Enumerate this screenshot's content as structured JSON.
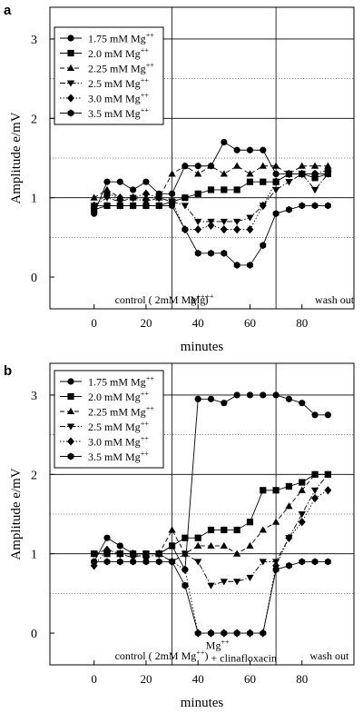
{
  "chart_data": [
    {
      "panel_label": "a",
      "type": "line",
      "xlabel": "minutes",
      "ylabel": "Amplitude e/mV",
      "xlim": [
        -17,
        100
      ],
      "ylim": [
        -0.4,
        3.4
      ],
      "xticks": [
        0,
        20,
        40,
        60,
        80,
        100
      ],
      "xtick_labels": [
        "0",
        "20",
        "40",
        "60",
        "80"
      ],
      "yticks": [
        0,
        1,
        2,
        3
      ],
      "ytick_labels": [
        "0",
        "1",
        "2",
        "3"
      ],
      "grid": {
        "solid_y": [
          1,
          2,
          3
        ],
        "dotted_y": [
          0.5,
          1.5,
          2.5
        ],
        "solid_x": [
          30,
          70
        ]
      },
      "legend_position": "top-left",
      "phase_labels": [
        {
          "text": "control ( 2mM Mg",
          "sup": "++",
          "close": ")",
          "x": 8,
          "y": -0.33,
          "lines": []
        },
        {
          "text": "Mg",
          "sup": "++",
          "close": "",
          "x": 37,
          "y": -0.33,
          "lines": []
        },
        {
          "text": "wash out",
          "sup": "",
          "close": "",
          "x": 85,
          "y": -0.33,
          "lines": []
        }
      ],
      "series": [
        {
          "name": "1.75 mM Mg",
          "sup": "++",
          "marker": "circle",
          "dash": "solid",
          "x": [
            0,
            5,
            10,
            15,
            20,
            25,
            30,
            35,
            40,
            45,
            50,
            55,
            60,
            65,
            70,
            75,
            80,
            85,
            90
          ],
          "y": [
            0.8,
            1.2,
            1.2,
            1.1,
            1.2,
            1.05,
            1.05,
            1.4,
            1.4,
            1.4,
            1.7,
            1.6,
            1.6,
            1.6,
            1.3,
            1.3,
            1.3,
            1.3,
            1.3
          ]
        },
        {
          "name": "2.0 mM Mg",
          "sup": "++",
          "marker": "square",
          "dash": "solid",
          "x": [
            0,
            5,
            10,
            15,
            20,
            25,
            30,
            35,
            40,
            45,
            50,
            55,
            60,
            65,
            70,
            75,
            80,
            85,
            90
          ],
          "y": [
            0.85,
            0.9,
            0.9,
            0.9,
            0.9,
            0.9,
            0.95,
            1.0,
            1.05,
            1.1,
            1.1,
            1.1,
            1.2,
            1.2,
            1.2,
            1.3,
            1.3,
            1.25,
            1.3
          ]
        },
        {
          "name": "2.25 mM Mg",
          "sup": "++",
          "marker": "triangle-up",
          "dash": "dash",
          "x": [
            0,
            5,
            10,
            15,
            20,
            25,
            30,
            35,
            40,
            45,
            50,
            55,
            60,
            65,
            70,
            75,
            80,
            85,
            90
          ],
          "y": [
            1.0,
            1.1,
            1.0,
            1.0,
            1.0,
            1.0,
            1.3,
            1.4,
            1.3,
            1.4,
            1.3,
            1.4,
            1.3,
            1.4,
            1.4,
            1.3,
            1.4,
            1.4,
            1.4
          ]
        },
        {
          "name": "2.5 mM Mg",
          "sup": "++",
          "marker": "triangle-down",
          "dash": "dashdot",
          "x": [
            0,
            5,
            10,
            15,
            20,
            25,
            30,
            35,
            40,
            45,
            50,
            55,
            60,
            65,
            70,
            75,
            80,
            85,
            90
          ],
          "y": [
            0.9,
            1.0,
            0.95,
            1.0,
            0.95,
            1.0,
            0.95,
            0.9,
            0.7,
            0.7,
            0.7,
            0.7,
            0.75,
            0.9,
            1.1,
            1.2,
            1.3,
            1.1,
            1.3
          ]
        },
        {
          "name": "3.0 mM Mg",
          "sup": "++",
          "marker": "diamond",
          "dash": "dot",
          "x": [
            0,
            5,
            10,
            15,
            20,
            25,
            30,
            35,
            40,
            45,
            50,
            55,
            60,
            65,
            70,
            75,
            80,
            85,
            90
          ],
          "y": [
            0.9,
            1.05,
            1.0,
            1.0,
            1.05,
            1.0,
            0.95,
            0.6,
            0.6,
            0.65,
            0.6,
            0.6,
            0.6,
            0.9,
            1.2,
            1.3,
            1.3,
            1.3,
            1.35
          ]
        },
        {
          "name": "3.5 mM Mg",
          "sup": "++",
          "marker": "hexagon",
          "dash": "solid",
          "x": [
            0,
            5,
            10,
            15,
            20,
            25,
            30,
            35,
            40,
            45,
            50,
            55,
            60,
            65,
            70,
            75,
            80,
            85,
            90
          ],
          "y": [
            0.9,
            0.9,
            0.9,
            0.9,
            0.9,
            0.9,
            0.9,
            0.6,
            0.3,
            0.3,
            0.3,
            0.15,
            0.15,
            0.4,
            0.8,
            0.85,
            0.9,
            0.9,
            0.9
          ]
        }
      ]
    },
    {
      "panel_label": "b",
      "type": "line",
      "xlabel": "minutes",
      "ylabel": "Amplitude e/mV",
      "xlim": [
        -17,
        100
      ],
      "ylim": [
        -0.4,
        3.4
      ],
      "xticks": [
        0,
        20,
        40,
        60,
        80,
        100
      ],
      "xtick_labels": [
        "0",
        "20",
        "40",
        "60",
        "80"
      ],
      "yticks": [
        0,
        1,
        2,
        3
      ],
      "ytick_labels": [
        "0",
        "1",
        "2",
        "3"
      ],
      "grid": {
        "solid_y": [
          1,
          2,
          3
        ],
        "dotted_y": [
          0.5,
          1.5,
          2.5
        ],
        "solid_x": [
          30,
          70
        ]
      },
      "legend_position": "top-left",
      "phase_labels": [
        {
          "text": "control ( 2mM Mg",
          "sup": "++",
          "close": ")",
          "x": 8,
          "y": -0.33,
          "lines": []
        },
        {
          "text": "Mg",
          "sup": "++",
          "close": "",
          "x": 43,
          "y": -0.2,
          "lines": []
        },
        {
          "text": "+ clinafloxacin",
          "sup": "",
          "close": "",
          "x": 45,
          "y": -0.36,
          "lines": []
        },
        {
          "text": "wash out",
          "sup": "",
          "close": "",
          "x": 83,
          "y": -0.33,
          "lines": []
        }
      ],
      "series": [
        {
          "name": "1.75 mM Mg",
          "sup": "++",
          "marker": "circle",
          "dash": "solid",
          "x": [
            0,
            5,
            10,
            15,
            20,
            25,
            30,
            35,
            40,
            45,
            50,
            55,
            60,
            65,
            70,
            75,
            80,
            85,
            90
          ],
          "y": [
            0.9,
            1.2,
            1.1,
            1.0,
            1.0,
            1.0,
            1.1,
            0.8,
            2.95,
            2.95,
            2.9,
            3.0,
            3.0,
            3.0,
            3.0,
            2.95,
            2.9,
            2.75,
            2.75
          ]
        },
        {
          "name": "2.0 mM Mg",
          "sup": "++",
          "marker": "square",
          "dash": "solid",
          "x": [
            0,
            5,
            10,
            15,
            20,
            25,
            30,
            35,
            40,
            45,
            50,
            55,
            60,
            65,
            70,
            75,
            80,
            85,
            90
          ],
          "y": [
            1.0,
            1.0,
            1.0,
            1.0,
            1.0,
            1.0,
            1.1,
            1.2,
            1.2,
            1.3,
            1.3,
            1.3,
            1.4,
            1.8,
            1.8,
            1.85,
            1.9,
            2.0,
            2.0
          ]
        },
        {
          "name": "2.25 mM Mg",
          "sup": "++",
          "marker": "triangle-up",
          "dash": "dash",
          "x": [
            0,
            5,
            10,
            15,
            20,
            25,
            30,
            35,
            40,
            45,
            50,
            55,
            60,
            65,
            70,
            75,
            80,
            85,
            90
          ],
          "y": [
            1.0,
            1.05,
            1.0,
            1.0,
            1.0,
            1.0,
            1.3,
            1.0,
            1.1,
            1.1,
            1.1,
            1.0,
            1.1,
            1.3,
            1.4,
            1.6,
            1.8,
            2.0,
            2.0
          ]
        },
        {
          "name": "2.5 mM Mg",
          "sup": "++",
          "marker": "triangle-down",
          "dash": "dashdot",
          "x": [
            0,
            5,
            10,
            15,
            20,
            25,
            30,
            35,
            40,
            45,
            50,
            55,
            60,
            65,
            70,
            75,
            80,
            85,
            90
          ],
          "y": [
            1.0,
            1.0,
            1.0,
            0.95,
            1.0,
            1.0,
            0.9,
            1.0,
            0.9,
            0.6,
            0.65,
            0.65,
            0.7,
            0.9,
            0.9,
            1.2,
            1.5,
            1.8,
            2.0
          ]
        },
        {
          "name": "3.0 mM Mg",
          "sup": "++",
          "marker": "diamond",
          "dash": "dot",
          "x": [
            0,
            5,
            10,
            15,
            20,
            25,
            30,
            35,
            40,
            45,
            50,
            55,
            60,
            65,
            70,
            75,
            80,
            85,
            90
          ],
          "y": [
            0.85,
            1.05,
            1.0,
            1.0,
            0.95,
            1.0,
            0.9,
            0.8,
            0.0,
            0.0,
            0.0,
            0.0,
            0.0,
            0.0,
            0.85,
            1.2,
            1.4,
            1.7,
            1.8
          ]
        },
        {
          "name": "3.5 mM Mg",
          "sup": "++",
          "marker": "hexagon",
          "dash": "solid",
          "x": [
            0,
            5,
            10,
            15,
            20,
            25,
            30,
            35,
            40,
            45,
            50,
            55,
            60,
            65,
            70,
            75,
            80,
            85,
            90
          ],
          "y": [
            0.9,
            0.9,
            0.9,
            0.9,
            0.9,
            0.9,
            0.9,
            0.6,
            0.0,
            0.0,
            0.0,
            0.0,
            0.0,
            0.0,
            0.8,
            0.85,
            0.9,
            0.9,
            0.9
          ]
        }
      ]
    }
  ]
}
